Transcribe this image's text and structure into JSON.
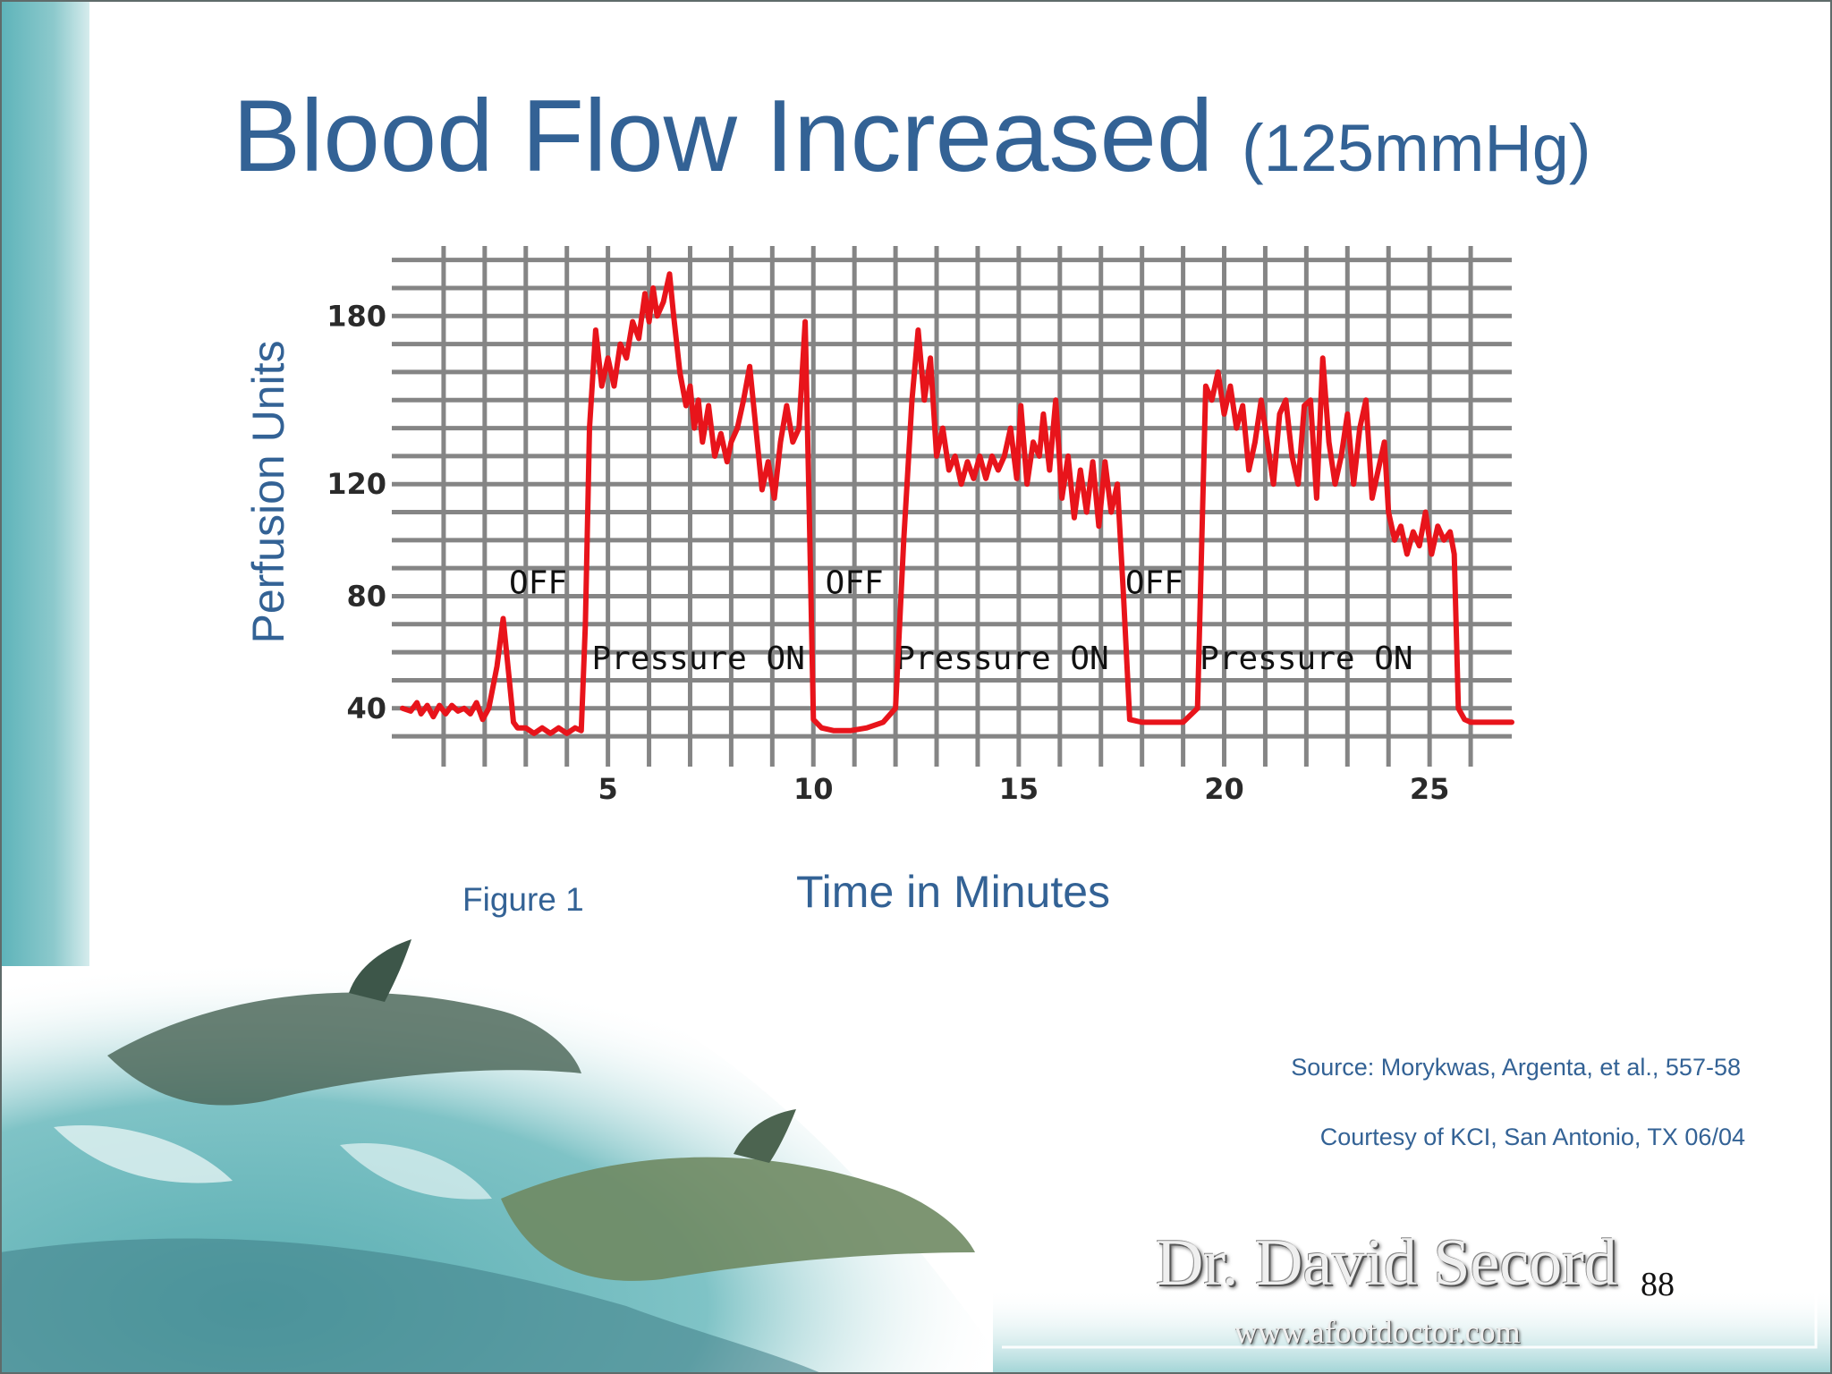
{
  "slide": {
    "title_main": "Blood Flow Increased",
    "title_sub": "(125mmHg)",
    "figure_label": "Figure 1",
    "source": "Source: Morykwas, Argenta, et al., 557-58",
    "courtesy": "Courtesy of KCI, San Antonio, TX 06/04",
    "logo_name": "Dr. David Secord",
    "logo_url": "www.afootdoctor.com",
    "page_number": "88"
  },
  "colors": {
    "title": "#336295",
    "line": "#e8141b",
    "grid": "#858585",
    "ocean": "#7fc3c6"
  },
  "chart_data": {
    "type": "line",
    "title": "",
    "xlabel": "Time in Minutes",
    "ylabel": "Perfusion Units",
    "xlim": [
      0,
      27
    ],
    "ylim": [
      23,
      205
    ],
    "x_ticks": [
      5,
      10,
      15,
      20,
      25
    ],
    "y_ticks": [
      40,
      80,
      120,
      180
    ],
    "grid": true,
    "annotations": [
      {
        "text": "OFF",
        "x": 3.3,
        "y": 81
      },
      {
        "text": "OFF",
        "x": 11.0,
        "y": 81
      },
      {
        "text": "OFF",
        "x": 18.3,
        "y": 81
      },
      {
        "text": "Pressure ON",
        "x": 7.2,
        "y": 54
      },
      {
        "text": "Pressure ON",
        "x": 14.6,
        "y": 54
      },
      {
        "text": "Pressure ON",
        "x": 22.0,
        "y": 54
      }
    ],
    "series": [
      {
        "name": "Perfusion",
        "x": [
          0,
          0.2,
          0.35,
          0.45,
          0.6,
          0.75,
          0.9,
          1.05,
          1.2,
          1.35,
          1.5,
          1.65,
          1.8,
          1.95,
          2.1,
          2.3,
          2.45,
          2.6,
          2.7,
          2.8,
          2.9,
          3.0,
          3.2,
          3.4,
          3.6,
          3.8,
          4.0,
          4.2,
          4.35,
          4.45,
          4.55,
          4.7,
          4.85,
          5.0,
          5.15,
          5.3,
          5.45,
          5.6,
          5.75,
          5.9,
          6.0,
          6.1,
          6.2,
          6.35,
          6.5,
          6.6,
          6.75,
          6.9,
          7.0,
          7.1,
          7.2,
          7.3,
          7.45,
          7.6,
          7.75,
          7.9,
          8.0,
          8.15,
          8.3,
          8.45,
          8.6,
          8.75,
          8.9,
          9.05,
          9.2,
          9.35,
          9.5,
          9.65,
          9.8,
          9.9,
          10.0,
          10.2,
          10.5,
          10.9,
          11.3,
          11.7,
          12.0,
          12.2,
          12.4,
          12.55,
          12.7,
          12.85,
          13.0,
          13.15,
          13.3,
          13.45,
          13.6,
          13.75,
          13.9,
          14.05,
          14.2,
          14.35,
          14.5,
          14.65,
          14.8,
          14.95,
          15.05,
          15.2,
          15.35,
          15.5,
          15.6,
          15.75,
          15.9,
          16.05,
          16.2,
          16.35,
          16.5,
          16.65,
          16.8,
          16.95,
          17.1,
          17.25,
          17.4,
          17.55,
          17.7,
          18.0,
          18.5,
          19.0,
          19.35,
          19.55,
          19.7,
          19.85,
          20.0,
          20.15,
          20.3,
          20.45,
          20.6,
          20.75,
          20.9,
          21.05,
          21.2,
          21.35,
          21.5,
          21.65,
          21.8,
          21.95,
          22.1,
          22.25,
          22.4,
          22.55,
          22.7,
          22.85,
          23.0,
          23.15,
          23.3,
          23.45,
          23.6,
          23.75,
          23.9,
          24.0,
          24.15,
          24.3,
          24.45,
          24.6,
          24.75,
          24.9,
          25.05,
          25.2,
          25.35,
          25.5,
          25.6,
          25.7,
          25.85,
          26.0,
          26.5,
          27.0
        ],
        "values": [
          40,
          39,
          42,
          38,
          41,
          37,
          41,
          38,
          41,
          39,
          40,
          38,
          42,
          36,
          40,
          55,
          72,
          50,
          35,
          33,
          33,
          33,
          31,
          33,
          31,
          33,
          31,
          33,
          32,
          70,
          140,
          175,
          155,
          165,
          155,
          170,
          165,
          178,
          172,
          188,
          178,
          190,
          180,
          185,
          195,
          180,
          160,
          148,
          155,
          140,
          150,
          135,
          148,
          130,
          138,
          128,
          135,
          140,
          150,
          162,
          140,
          118,
          128,
          115,
          135,
          148,
          135,
          140,
          178,
          110,
          36,
          33,
          32,
          32,
          33,
          35,
          40,
          100,
          150,
          175,
          150,
          165,
          130,
          140,
          125,
          130,
          120,
          128,
          122,
          130,
          122,
          130,
          125,
          130,
          140,
          122,
          148,
          120,
          135,
          130,
          145,
          125,
          150,
          115,
          130,
          108,
          125,
          110,
          128,
          105,
          128,
          110,
          120,
          80,
          36,
          35,
          35,
          35,
          40,
          155,
          150,
          160,
          145,
          155,
          140,
          148,
          125,
          135,
          150,
          135,
          120,
          145,
          150,
          130,
          120,
          148,
          150,
          115,
          165,
          135,
          120,
          130,
          145,
          120,
          140,
          150,
          115,
          125,
          135,
          110,
          100,
          105,
          95,
          103,
          98,
          110,
          95,
          105,
          100,
          103,
          95,
          40,
          36,
          35,
          35,
          35
        ]
      }
    ]
  }
}
